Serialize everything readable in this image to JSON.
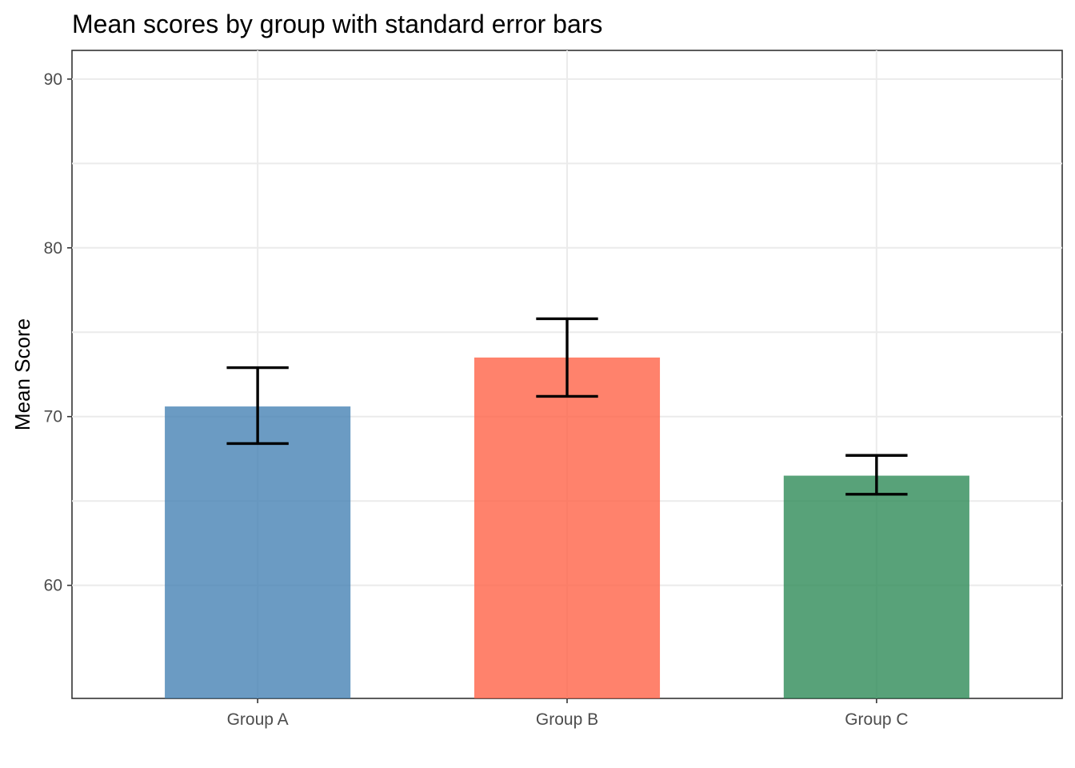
{
  "chart_data": {
    "type": "bar",
    "title": "Mean scores by group with standard error bars",
    "xlabel": "",
    "ylabel": "Mean Score",
    "categories": [
      "Group A",
      "Group B",
      "Group C"
    ],
    "values": [
      70.6,
      73.5,
      66.5
    ],
    "error_low": [
      68.4,
      71.2,
      65.4
    ],
    "error_high": [
      72.9,
      75.8,
      67.7
    ],
    "colors": [
      "#4682b4",
      "#ff6347",
      "#2e8b57"
    ],
    "ylim": [
      53.3,
      91.7
    ],
    "yticks": [
      60,
      70,
      80,
      90
    ],
    "grid": true,
    "legend": "none"
  }
}
